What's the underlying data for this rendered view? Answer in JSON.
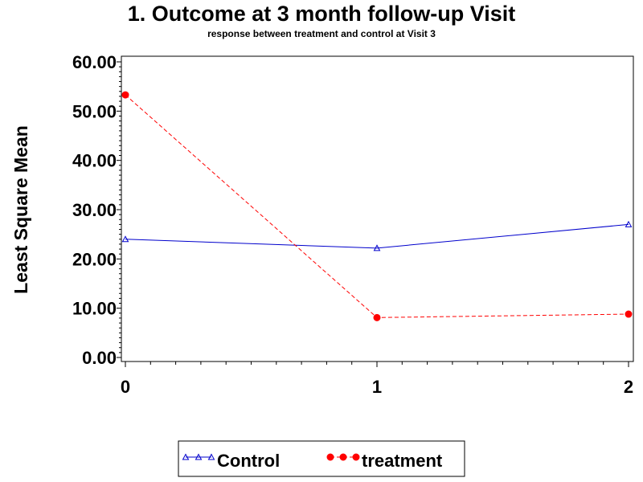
{
  "chart_data": {
    "type": "line",
    "title": "1. Outcome at 3 month follow-up Visit",
    "subtitle": "response between treatment and control at Visit 3",
    "xlabel": "",
    "ylabel": "Least Square Mean",
    "x": [
      0,
      1,
      2
    ],
    "xlim": [
      0,
      2
    ],
    "ylim": [
      0,
      60
    ],
    "x_ticks": [
      "0",
      "1",
      "2"
    ],
    "y_ticks": [
      "0.00",
      "10.00",
      "20.00",
      "30.00",
      "40.00",
      "50.00",
      "60.00"
    ],
    "legend_position": "bottom",
    "series": [
      {
        "name": "Control",
        "values": [
          24.0,
          22.2,
          27.0
        ],
        "color": "#0000cc",
        "marker": "triangle",
        "line": "solid"
      },
      {
        "name": "treatment",
        "values": [
          53.3,
          8.1,
          8.8
        ],
        "color": "#ff0000",
        "marker": "circle",
        "line": "dashed"
      }
    ]
  }
}
